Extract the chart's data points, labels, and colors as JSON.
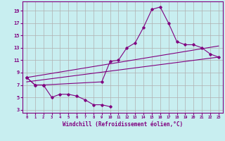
{
  "xlabel": "Windchill (Refroidissement éolien,°C)",
  "bg_color": "#c8eef0",
  "line_color": "#800080",
  "grid_color": "#b0b0b0",
  "xlim": [
    -0.5,
    23.5
  ],
  "ylim": [
    2.5,
    20.5
  ],
  "xticks": [
    0,
    1,
    2,
    3,
    4,
    5,
    6,
    7,
    8,
    9,
    10,
    11,
    12,
    13,
    14,
    15,
    16,
    17,
    18,
    19,
    20,
    21,
    22,
    23
  ],
  "yticks": [
    3,
    5,
    7,
    9,
    11,
    13,
    15,
    17,
    19
  ],
  "series1_y": [
    8.2,
    7.0,
    7.0,
    5.0,
    5.5,
    5.5,
    5.2,
    4.6,
    3.8,
    3.8,
    3.5,
    null,
    null,
    null,
    null,
    null,
    null,
    null,
    null,
    null,
    null,
    null,
    null,
    null
  ],
  "series2_y": [
    8.2,
    7.0,
    7.0,
    null,
    null,
    null,
    null,
    null,
    null,
    7.5,
    10.8,
    11.0,
    13.0,
    13.8,
    16.3,
    19.2,
    19.6,
    17.0,
    14.0,
    13.5,
    13.5,
    13.0,
    12.0,
    11.5
  ],
  "series3_y": [
    null,
    null,
    null,
    5.0,
    5.5,
    5.5,
    5.2,
    4.6,
    3.8,
    3.8,
    null,
    null,
    null,
    null,
    null,
    null,
    null,
    null,
    null,
    null,
    null,
    null,
    null,
    null
  ],
  "line1_x": [
    0,
    23
  ],
  "line1_y": [
    7.5,
    11.5
  ],
  "line2_x": [
    0,
    23
  ],
  "line2_y": [
    8.2,
    13.3
  ]
}
